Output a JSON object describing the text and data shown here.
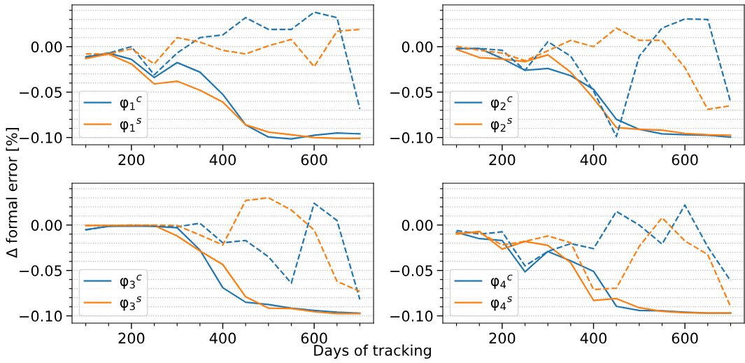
{
  "chart_data": [
    {
      "type": "line",
      "xlabel": "Days of tracking",
      "ylabel": "Δ formal error [%]",
      "legend": "lower left",
      "grid": "y",
      "x": [
        100,
        150,
        200,
        250,
        300,
        350,
        400,
        450,
        500,
        550,
        600,
        650,
        700
      ],
      "xlim": [
        70,
        730
      ],
      "ylim": [
        -0.108,
        0.046
      ],
      "xticks": [
        {
          "value": 100,
          "label": null
        },
        {
          "value": 150,
          "label": null
        },
        200,
        {
          "value": 250,
          "label": null
        },
        {
          "value": 300,
          "label": null
        },
        {
          "value": 350,
          "label": null
        },
        400,
        {
          "value": 450,
          "label": null
        },
        {
          "value": 500,
          "label": null
        },
        {
          "value": 550,
          "label": null
        },
        600,
        {
          "value": 650,
          "label": null
        },
        {
          "value": 700,
          "label": null
        }
      ],
      "yticks": [
        {
          "value": -0.1,
          "label": "−0.10"
        },
        {
          "value": -0.09,
          "label": null
        },
        {
          "value": -0.08,
          "label": null
        },
        {
          "value": -0.07,
          "label": null
        },
        {
          "value": -0.06,
          "label": null
        },
        {
          "value": -0.05,
          "label": "−0.05"
        },
        {
          "value": -0.04,
          "label": null
        },
        {
          "value": -0.03,
          "label": null
        },
        {
          "value": -0.02,
          "label": null
        },
        {
          "value": -0.01,
          "label": null
        },
        {
          "value": 0.0,
          "label": "0.00"
        },
        {
          "value": 0.01,
          "label": null
        },
        {
          "value": 0.02,
          "label": null
        },
        {
          "value": 0.03,
          "label": null
        },
        {
          "value": 0.04,
          "label": null
        }
      ],
      "series": [
        {
          "name": "φ$_{1}$$^{c}$",
          "color": "#1f77b4",
          "line_style": "solid",
          "values": [
            -0.0115,
            -0.007,
            -0.014,
            -0.034,
            -0.0175,
            -0.028,
            -0.0525,
            -0.086,
            -0.0995,
            -0.1015,
            -0.0975,
            -0.095,
            -0.096
          ]
        },
        {
          "name": "φ$_{1}$$^{s}$",
          "color": "#ff7f0e",
          "line_style": "solid",
          "values": [
            -0.013,
            -0.008,
            -0.019,
            -0.041,
            -0.038,
            -0.048,
            -0.061,
            -0.086,
            -0.094,
            -0.097,
            -0.1,
            -0.101,
            -0.101
          ]
        },
        {
          "color": "#1f77b4",
          "line_style": "dashed",
          "values": [
            -0.011,
            -0.007,
            0.0,
            -0.031,
            -0.007,
            0.01,
            0.013,
            0.032,
            0.019,
            0.019,
            0.038,
            0.032,
            -0.0685
          ]
        },
        {
          "color": "#ff7f0e",
          "line_style": "dashed",
          "values": [
            -0.008,
            -0.008,
            -0.0025,
            -0.019,
            0.01,
            0.005,
            -0.004,
            -0.008,
            0.001,
            0.008,
            -0.022,
            0.017,
            0.019
          ]
        }
      ]
    },
    {
      "type": "line",
      "legend": "lower left",
      "grid": "y",
      "x": [
        100,
        150,
        200,
        250,
        300,
        350,
        400,
        450,
        500,
        550,
        600,
        650,
        700
      ],
      "xlim": [
        70,
        730
      ],
      "ylim": [
        -0.108,
        0.046
      ],
      "xticks": [
        {
          "value": 100,
          "label": null
        },
        {
          "value": 150,
          "label": null
        },
        200,
        {
          "value": 250,
          "label": null
        },
        {
          "value": 300,
          "label": null
        },
        {
          "value": 350,
          "label": null
        },
        400,
        {
          "value": 450,
          "label": null
        },
        {
          "value": 500,
          "label": null
        },
        {
          "value": 550,
          "label": null
        },
        600,
        {
          "value": 650,
          "label": null
        },
        {
          "value": 700,
          "label": null
        }
      ],
      "yticks": [
        {
          "value": -0.1,
          "label": "−0.10"
        },
        {
          "value": -0.09,
          "label": null
        },
        {
          "value": -0.08,
          "label": null
        },
        {
          "value": -0.07,
          "label": null
        },
        {
          "value": -0.06,
          "label": null
        },
        {
          "value": -0.05,
          "label": "−0.05"
        },
        {
          "value": -0.04,
          "label": null
        },
        {
          "value": -0.03,
          "label": null
        },
        {
          "value": -0.02,
          "label": null
        },
        {
          "value": -0.01,
          "label": null
        },
        {
          "value": 0.0,
          "label": "0.00"
        },
        {
          "value": 0.01,
          "label": null
        },
        {
          "value": 0.02,
          "label": null
        },
        {
          "value": 0.03,
          "label": null
        },
        {
          "value": 0.04,
          "label": null
        }
      ],
      "series": [
        {
          "name": "φ$_{2}$$^{c}$",
          "color": "#1f77b4",
          "line_style": "solid",
          "values": [
            -0.002,
            -0.002,
            -0.013,
            -0.026,
            -0.024,
            -0.032,
            -0.047,
            -0.08,
            -0.091,
            -0.096,
            -0.097,
            -0.0975,
            -0.0995
          ]
        },
        {
          "name": "φ$_{2}$$^{s}$",
          "color": "#ff7f0e",
          "line_style": "solid",
          "values": [
            -0.003,
            -0.012,
            -0.0135,
            -0.0165,
            -0.009,
            -0.028,
            -0.057,
            -0.089,
            -0.091,
            -0.092,
            -0.0955,
            -0.097,
            -0.0975
          ]
        },
        {
          "color": "#1f77b4",
          "line_style": "dashed",
          "values": [
            -0.002,
            -0.002,
            -0.004,
            -0.026,
            0.0055,
            -0.0105,
            -0.049,
            -0.099,
            -0.0105,
            0.0205,
            0.0305,
            0.03,
            -0.061
          ]
        },
        {
          "color": "#ff7f0e",
          "line_style": "dashed",
          "values": [
            0.0005,
            -0.004,
            -0.007,
            -0.0155,
            -0.0045,
            0.007,
            0.0,
            0.0205,
            0.007,
            0.007,
            -0.023,
            -0.069,
            -0.065
          ]
        }
      ]
    },
    {
      "type": "line",
      "legend": "lower left",
      "grid": "y",
      "x": [
        100,
        150,
        200,
        250,
        300,
        350,
        400,
        450,
        500,
        550,
        600,
        650,
        700
      ],
      "xlim": [
        70,
        730
      ],
      "ylim": [
        -0.108,
        0.046
      ],
      "xticks": [
        {
          "value": 100,
          "label": null
        },
        {
          "value": 150,
          "label": null
        },
        200,
        {
          "value": 250,
          "label": null
        },
        {
          "value": 300,
          "label": null
        },
        {
          "value": 350,
          "label": null
        },
        400,
        {
          "value": 450,
          "label": null
        },
        {
          "value": 500,
          "label": null
        },
        {
          "value": 550,
          "label": null
        },
        600,
        {
          "value": 650,
          "label": null
        },
        {
          "value": 700,
          "label": null
        }
      ],
      "yticks": [
        {
          "value": -0.1,
          "label": "−0.10"
        },
        {
          "value": -0.09,
          "label": null
        },
        {
          "value": -0.08,
          "label": null
        },
        {
          "value": -0.07,
          "label": null
        },
        {
          "value": -0.06,
          "label": null
        },
        {
          "value": -0.05,
          "label": "−0.05"
        },
        {
          "value": -0.04,
          "label": null
        },
        {
          "value": -0.03,
          "label": null
        },
        {
          "value": -0.02,
          "label": null
        },
        {
          "value": -0.01,
          "label": null
        },
        {
          "value": 0.0,
          "label": "0.00"
        },
        {
          "value": 0.01,
          "label": null
        },
        {
          "value": 0.02,
          "label": null
        },
        {
          "value": 0.03,
          "label": null
        },
        {
          "value": 0.04,
          "label": null
        }
      ],
      "series": [
        {
          "name": "φ$_{3}$$^{c}$",
          "color": "#1f77b4",
          "line_style": "solid",
          "values": [
            -0.005,
            -0.0015,
            -0.001,
            -0.0015,
            -0.003,
            -0.0275,
            -0.069,
            -0.085,
            -0.0875,
            -0.0915,
            -0.094,
            -0.096,
            -0.097
          ]
        },
        {
          "name": "φ$_{3}$$^{s}$",
          "color": "#ff7f0e",
          "line_style": "solid",
          "values": [
            -0.0005,
            -0.0005,
            -0.0005,
            -0.0005,
            -0.012,
            -0.0285,
            -0.0435,
            -0.079,
            -0.0915,
            -0.092,
            -0.0955,
            -0.0975,
            -0.0975
          ]
        },
        {
          "color": "#1f77b4",
          "line_style": "dashed",
          "values": [
            -0.0055,
            -0.001,
            0.0,
            -0.001,
            -0.002,
            0.002,
            -0.0195,
            -0.017,
            -0.035,
            -0.064,
            0.024,
            0.005,
            -0.082
          ]
        },
        {
          "color": "#ff7f0e",
          "line_style": "dashed",
          "values": [
            -0.0005,
            -0.0005,
            0.0,
            0.0,
            -0.0005,
            -0.011,
            -0.022,
            0.027,
            0.03,
            0.0165,
            -0.0055,
            -0.062,
            -0.073
          ]
        }
      ]
    },
    {
      "type": "line",
      "legend": "lower left",
      "grid": "y",
      "x": [
        100,
        150,
        200,
        250,
        300,
        350,
        400,
        450,
        500,
        550,
        600,
        650,
        700
      ],
      "xlim": [
        70,
        730
      ],
      "ylim": [
        -0.108,
        0.046
      ],
      "xticks": [
        {
          "value": 100,
          "label": null
        },
        {
          "value": 150,
          "label": null
        },
        200,
        {
          "value": 250,
          "label": null
        },
        {
          "value": 300,
          "label": null
        },
        {
          "value": 350,
          "label": null
        },
        400,
        {
          "value": 450,
          "label": null
        },
        {
          "value": 500,
          "label": null
        },
        {
          "value": 550,
          "label": null
        },
        600,
        {
          "value": 650,
          "label": null
        },
        {
          "value": 700,
          "label": null
        }
      ],
      "yticks": [
        {
          "value": -0.1,
          "label": "−0.10"
        },
        {
          "value": -0.09,
          "label": null
        },
        {
          "value": -0.08,
          "label": null
        },
        {
          "value": -0.07,
          "label": null
        },
        {
          "value": -0.06,
          "label": null
        },
        {
          "value": -0.05,
          "label": "−0.05"
        },
        {
          "value": -0.04,
          "label": null
        },
        {
          "value": -0.03,
          "label": null
        },
        {
          "value": -0.02,
          "label": null
        },
        {
          "value": -0.01,
          "label": null
        },
        {
          "value": 0.0,
          "label": "0.00"
        },
        {
          "value": 0.01,
          "label": null
        },
        {
          "value": 0.02,
          "label": null
        },
        {
          "value": 0.03,
          "label": null
        },
        {
          "value": 0.04,
          "label": null
        }
      ],
      "series": [
        {
          "name": "φ$_{4}$$^{c}$",
          "color": "#1f77b4",
          "line_style": "solid",
          "values": [
            -0.008,
            -0.015,
            -0.017,
            -0.0515,
            -0.029,
            -0.0395,
            -0.051,
            -0.0895,
            -0.094,
            -0.0945,
            -0.096,
            -0.097,
            -0.097
          ]
        },
        {
          "name": "φ$_{4}$$^{s}$",
          "color": "#ff7f0e",
          "line_style": "solid",
          "values": [
            -0.01,
            -0.007,
            -0.0265,
            -0.018,
            -0.0225,
            -0.0415,
            -0.083,
            -0.081,
            -0.091,
            -0.095,
            -0.0965,
            -0.097,
            -0.097
          ]
        },
        {
          "color": "#1f77b4",
          "line_style": "dashed",
          "values": [
            -0.006,
            -0.01,
            -0.0075,
            -0.045,
            -0.029,
            -0.0205,
            -0.026,
            0.015,
            0.0,
            -0.021,
            0.022,
            -0.024,
            -0.0615
          ]
        },
        {
          "color": "#ff7f0e",
          "line_style": "dashed",
          "values": [
            -0.009,
            -0.008,
            -0.022,
            -0.018,
            -0.012,
            -0.0195,
            -0.071,
            -0.0695,
            -0.0235,
            0.008,
            -0.0175,
            -0.0325,
            -0.09
          ]
        }
      ]
    }
  ]
}
